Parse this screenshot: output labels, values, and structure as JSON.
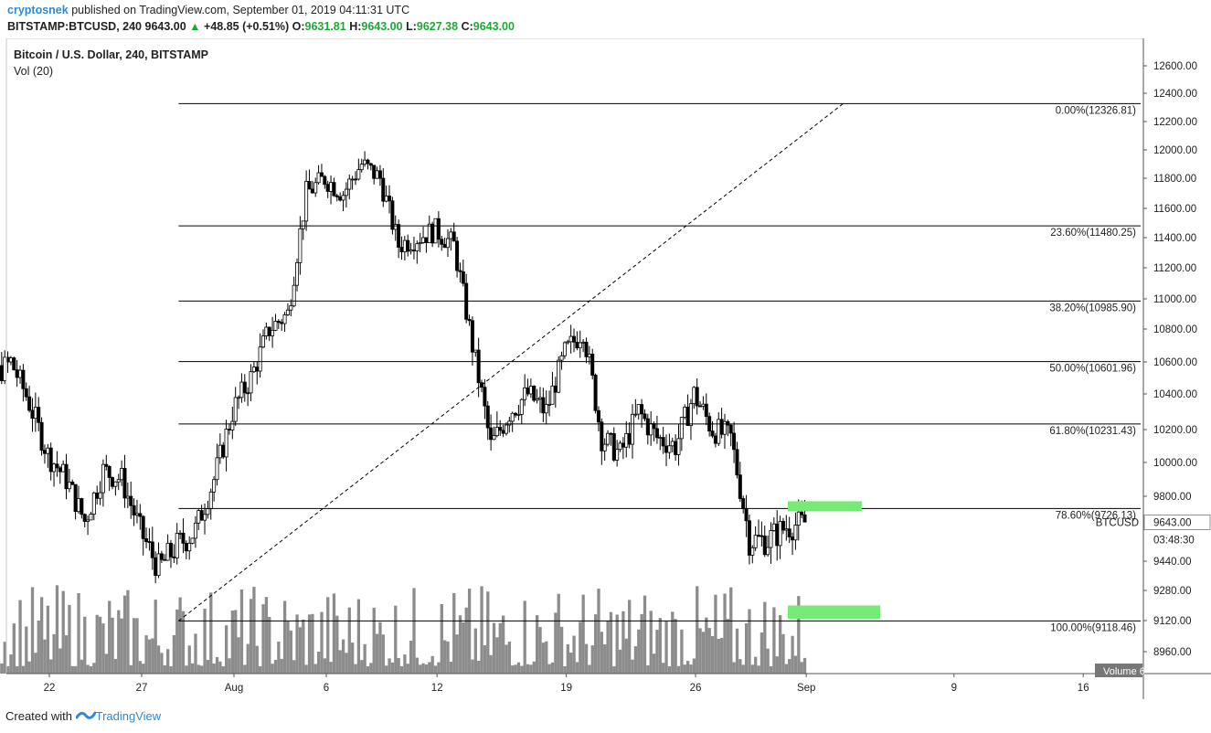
{
  "header": {
    "author": "cryptosnek",
    "published_text": "published on TradingView.com, September 01, 2019 04:11:31 UTC",
    "symbol": "BITSTAMP:BTCUSD, 240",
    "last": "9643.00",
    "change_arrow": "▲",
    "change": "+48.85 (+0.51%)",
    "o_label": "O:",
    "o_val": "9631.81",
    "h_label": "H:",
    "h_val": "9643.00",
    "l_label": "L:",
    "l_val": "9627.38",
    "c_label": "C:",
    "c_val": "9643.00"
  },
  "footer": {
    "created_with": "Created with",
    "brand": "TradingView",
    "logo_icon": "tradingview-logo-icon"
  },
  "colors": {
    "fib_line": "#000000",
    "candle": "#000000",
    "volume": "#8c8c8c",
    "green_zone": "#76ea76",
    "up_green": "#1fa83a",
    "accent_blue": "#2e8bd6"
  },
  "chart_data": {
    "type": "candlestick",
    "title": "Bitcoin / U.S. Dollar, 240, BITSTAMP",
    "indicator": "Vol (20)",
    "volume_label": "Volume",
    "volume_value": "6",
    "symbol_label": "BTCUSD",
    "last_price_label": "9643.00",
    "countdown_label": "03:48:30",
    "y_ticks": [
      "12600.00",
      "12400.00",
      "12200.00",
      "12000.00",
      "11800.00",
      "11600.00",
      "11400.00",
      "11200.00",
      "11000.00",
      "10800.00",
      "10600.00",
      "10400.00",
      "10200.00",
      "10000.00",
      "9800.00",
      "9640.00",
      "9440.00",
      "9280.00",
      "9120.00",
      "8960.00"
    ],
    "x_ticks": [
      "22",
      "27",
      "Aug",
      "6",
      "12",
      "19",
      "26",
      "Sep",
      "9",
      "16"
    ],
    "fib_levels": [
      {
        "label": "0.00%(12326.81)",
        "price": 12326.81
      },
      {
        "label": "23.60%(11480.25)",
        "price": 11480.25
      },
      {
        "label": "38.20%(10985.90)",
        "price": 10985.9
      },
      {
        "label": "50.00%(10601.96)",
        "price": 10601.96
      },
      {
        "label": "61.80%(10231.43)",
        "price": 10231.43
      },
      {
        "label": "78.60%(9726.13)",
        "price": 9726.13
      },
      {
        "label": "100.00%(9118.46)",
        "price": 9118.46
      }
    ],
    "trend_line": {
      "from": {
        "date": "2019-07-29",
        "price": 9118.46
      },
      "to": {
        "date": "2019-09-03",
        "price": 12326.81
      }
    },
    "zones": [
      {
        "name": "upper",
        "price_low": 9710,
        "price_high": 9770,
        "from": "2019-08-31",
        "to": "2019-09-04"
      },
      {
        "name": "lower",
        "price_low": 9130,
        "price_high": 9200,
        "from": "2019-08-31",
        "to": "2019-09-05"
      }
    ],
    "path": [
      [
        "2019-07-17",
        10420
      ],
      [
        "2019-07-18",
        10950
      ],
      [
        "2019-07-19",
        10500
      ],
      [
        "2019-07-20",
        10600
      ],
      [
        "2019-07-21",
        10350
      ],
      [
        "2019-07-22",
        10050
      ],
      [
        "2019-07-23",
        9900
      ],
      [
        "2019-07-24",
        9650
      ],
      [
        "2019-07-25",
        9950
      ],
      [
        "2019-07-26",
        9900
      ],
      [
        "2019-07-27",
        9600
      ],
      [
        "2019-07-28",
        9400
      ],
      [
        "2019-07-29",
        9520
      ],
      [
        "2019-07-30",
        9600
      ],
      [
        "2019-07-31",
        9900
      ],
      [
        "2019-08-01",
        10300
      ],
      [
        "2019-08-02",
        10500
      ],
      [
        "2019-08-03",
        10800
      ],
      [
        "2019-08-04",
        10900
      ],
      [
        "2019-08-05",
        11700
      ],
      [
        "2019-08-06",
        11800
      ],
      [
        "2019-08-07",
        11700
      ],
      [
        "2019-08-08",
        11900
      ],
      [
        "2019-08-09",
        11800
      ],
      [
        "2019-08-10",
        11350
      ],
      [
        "2019-08-11",
        11400
      ],
      [
        "2019-08-12",
        11450
      ],
      [
        "2019-08-13",
        11350
      ],
      [
        "2019-08-14",
        10700
      ],
      [
        "2019-08-15",
        10100
      ],
      [
        "2019-08-16",
        10300
      ],
      [
        "2019-08-17",
        10400
      ],
      [
        "2019-08-18",
        10300
      ],
      [
        "2019-08-19",
        10650
      ],
      [
        "2019-08-20",
        10800
      ],
      [
        "2019-08-21",
        10150
      ],
      [
        "2019-08-22",
        10050
      ],
      [
        "2019-08-23",
        10300
      ],
      [
        "2019-08-24",
        10150
      ],
      [
        "2019-08-25",
        10100
      ],
      [
        "2019-08-26",
        10400
      ],
      [
        "2019-08-27",
        10200
      ],
      [
        "2019-08-28",
        10150
      ],
      [
        "2019-08-29",
        9550
      ],
      [
        "2019-08-30",
        9550
      ],
      [
        "2019-08-31",
        9620
      ],
      [
        "2019-09-01",
        9643
      ]
    ]
  }
}
